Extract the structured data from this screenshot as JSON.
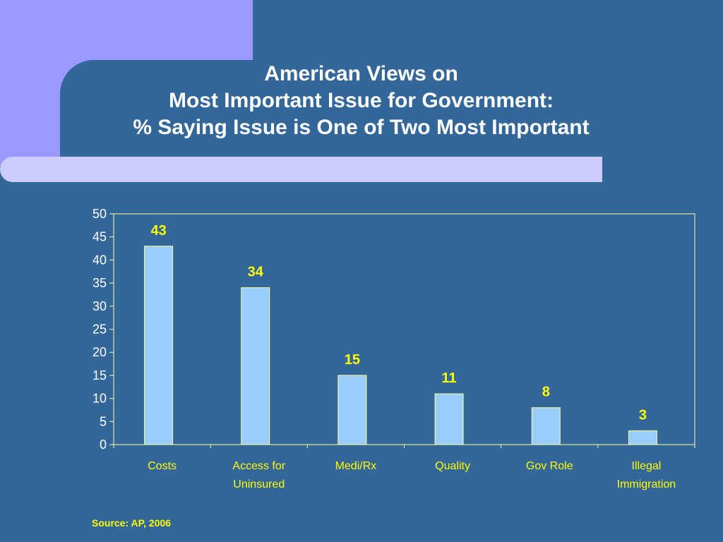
{
  "title_lines": [
    "American Views on",
    "Most Important Issue for Government:",
    "% Saying Issue is One of Two Most Important"
  ],
  "source": "Source: AP, 2006",
  "colors": {
    "background": "#336699",
    "accent_block": "#9999ff",
    "accent_strip": "#ccccff",
    "bar_fill": "#99ccff",
    "plot_border": "#ffff99",
    "value_labels": "#ffff00",
    "tick_labels": "#ffffff"
  },
  "chart_data": {
    "type": "bar",
    "title": "American Views on Most Important Issue for Government: % Saying Issue is One of Two Most Important",
    "categories": [
      [
        "Costs"
      ],
      [
        "Access for",
        "Uninsured"
      ],
      [
        "Medi/Rx"
      ],
      [
        "Quality"
      ],
      [
        "Gov Role"
      ],
      [
        "Illegal",
        "Immigration"
      ]
    ],
    "values": [
      43,
      34,
      15,
      11,
      8,
      3
    ],
    "ylim": [
      0,
      50
    ],
    "yticks": [
      "0",
      "5",
      "10",
      "15",
      "20",
      "25",
      "30",
      "35",
      "40",
      "45",
      "50"
    ],
    "data_labels": true,
    "grid": false,
    "legend": "none"
  }
}
